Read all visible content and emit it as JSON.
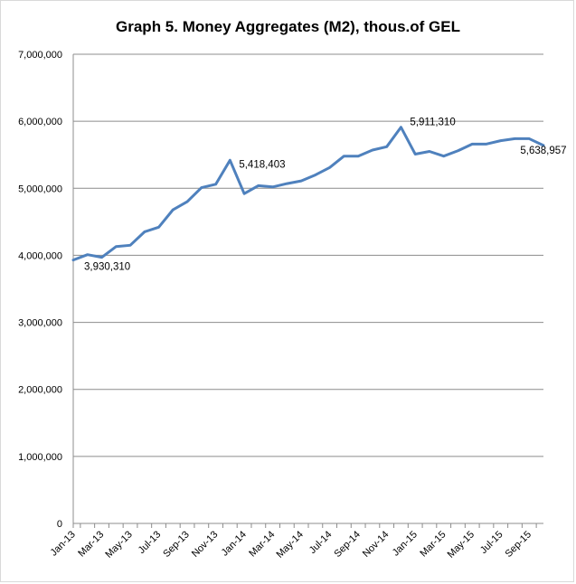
{
  "chart_data": {
    "type": "line",
    "title": "Graph 5. Money Aggregates (M2), thous.of GEL",
    "xlabel": "",
    "ylabel": "",
    "ylim": [
      0,
      7000000
    ],
    "y_ticks": [
      0,
      1000000,
      2000000,
      3000000,
      4000000,
      5000000,
      6000000,
      7000000
    ],
    "y_tick_labels": [
      "0",
      "1,000,000",
      "2,000,000",
      "3,000,000",
      "4,000,000",
      "5,000,000",
      "6,000,000",
      "7,000,000"
    ],
    "grid": true,
    "line_color": "#4f81bd",
    "x": [
      "Jan-13",
      "Feb-13",
      "Mar-13",
      "Apr-13",
      "May-13",
      "Jun-13",
      "Jul-13",
      "Aug-13",
      "Sep-13",
      "Oct-13",
      "Nov-13",
      "Dec-13",
      "Jan-14",
      "Feb-14",
      "Mar-14",
      "Apr-14",
      "May-14",
      "Jun-14",
      "Jul-14",
      "Aug-14",
      "Sep-14",
      "Oct-14",
      "Nov-14",
      "Dec-14",
      "Jan-15",
      "Feb-15",
      "Mar-15",
      "Apr-15",
      "May-15",
      "Jun-15",
      "Jul-15",
      "Aug-15",
      "Sep-15",
      "Oct-15"
    ],
    "x_tick_labels": [
      "Jan-13",
      "Mar-13",
      "May-13",
      "Jul-13",
      "Sep-13",
      "Nov-13",
      "Jan-14",
      "Mar-14",
      "May-14",
      "Jul-14",
      "Sep-14",
      "Nov-14",
      "Jan-15",
      "Mar-15",
      "May-15",
      "Jul-15",
      "Sep-15"
    ],
    "series": [
      {
        "values": [
          3930310,
          4010000,
          3970000,
          4130000,
          4150000,
          4350000,
          4420000,
          4680000,
          4800000,
          5010000,
          5060000,
          5418403,
          4920000,
          5040000,
          5020000,
          5070000,
          5110000,
          5200000,
          5310000,
          5480000,
          5480000,
          5570000,
          5620000,
          5911310,
          5510000,
          5550000,
          5480000,
          5560000,
          5660000,
          5660000,
          5710000,
          5740000,
          5740000,
          5638957
        ]
      }
    ],
    "annotations": [
      {
        "index": 0,
        "text": "3,930,310"
      },
      {
        "index": 11,
        "text": "5,418,403"
      },
      {
        "index": 23,
        "text": "5,911,310"
      },
      {
        "index": 33,
        "text": "5,638,957"
      }
    ]
  }
}
